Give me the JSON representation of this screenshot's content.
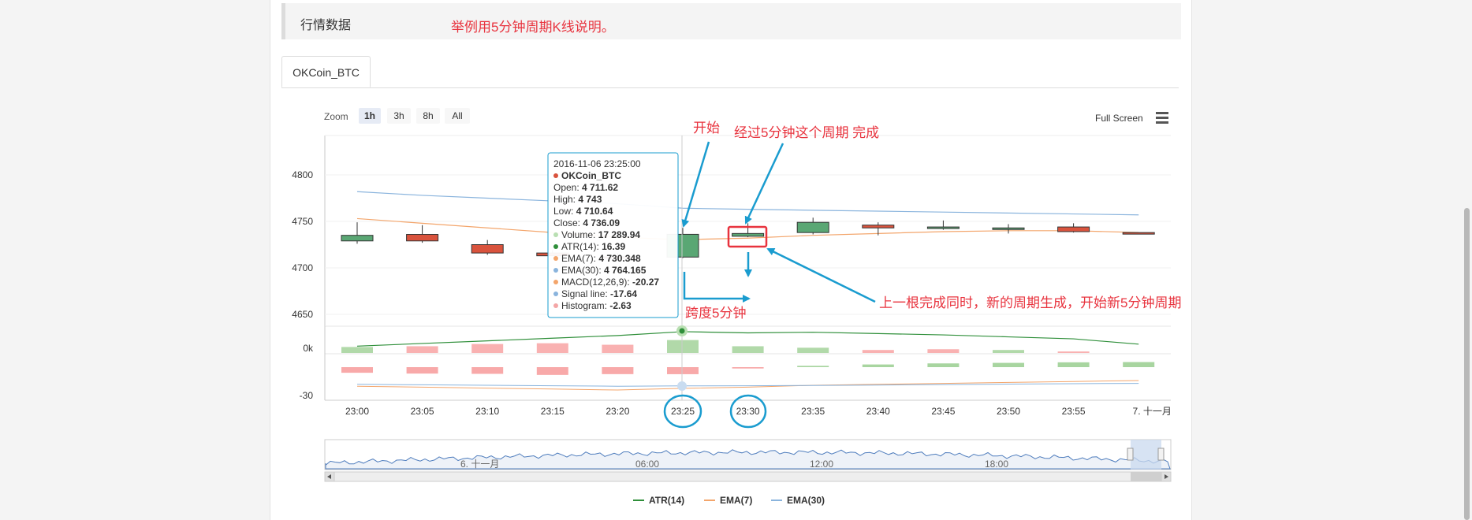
{
  "section": {
    "title": "行情数据",
    "note": "举例用5分钟周期K线说明。"
  },
  "tab": {
    "label": "OKCoin_BTC"
  },
  "toolbar": {
    "zoom_label": "Zoom",
    "zoom_options": [
      "1h",
      "3h",
      "8h",
      "All"
    ],
    "zoom_selected": "1h",
    "full_screen_label": "Full Screen",
    "menu_icon": "hamburger-menu-icon"
  },
  "colors": {
    "up": "#5aa774",
    "down": "#d9533d",
    "atr": "#2f8f3a",
    "ema7": "#f3a56b",
    "ema30": "#8ab4dd",
    "annotation": "#e8333e",
    "arrow": "#1a9ccf"
  },
  "chart_data": {
    "type": "candlestick",
    "series_name": "OKCoin_BTC",
    "x": [
      "23:00",
      "23:05",
      "23:10",
      "23:15",
      "23:20",
      "23:25",
      "23:30",
      "23:35",
      "23:40",
      "23:45",
      "23:50",
      "23:55",
      "7. 十一月"
    ],
    "candles": [
      {
        "t": "23:00",
        "open": 4729,
        "high": 4749,
        "low": 4726,
        "close": 4735
      },
      {
        "t": "23:05",
        "open": 4736,
        "high": 4746,
        "low": 4727,
        "close": 4729
      },
      {
        "t": "23:10",
        "open": 4725,
        "high": 4730,
        "low": 4714,
        "close": 4716
      },
      {
        "t": "23:15",
        "open": 4716,
        "high": 4719,
        "low": 4713,
        "close": 4713
      },
      {
        "t": "23:20",
        "open": 4712,
        "high": 4716,
        "low": 4708,
        "close": 4711
      },
      {
        "t": "23:25",
        "open": 4711.62,
        "high": 4743,
        "low": 4710.64,
        "close": 4736.09
      },
      {
        "t": "23:30",
        "open": 4734,
        "high": 4748,
        "low": 4733,
        "close": 4737
      },
      {
        "t": "23:35",
        "open": 4738,
        "high": 4754,
        "low": 4736,
        "close": 4749
      },
      {
        "t": "23:40",
        "open": 4746,
        "high": 4749,
        "low": 4735,
        "close": 4743
      },
      {
        "t": "23:45",
        "open": 4743,
        "high": 4751,
        "low": 4741,
        "close": 4744
      },
      {
        "t": "23:50",
        "open": 4743,
        "high": 4747,
        "low": 4737,
        "close": 4743
      },
      {
        "t": "23:55",
        "open": 4744,
        "high": 4748,
        "low": 4738,
        "close": 4739
      },
      {
        "t": "7. 十一月",
        "open": 4738,
        "high": 4738,
        "low": 4737,
        "close": 4737
      }
    ],
    "ema7": [
      4753,
      4748,
      4743,
      4738,
      4733,
      4730.348,
      4732,
      4735,
      4737,
      4739,
      4740,
      4740,
      4738
    ],
    "ema30": [
      4782,
      4778,
      4775,
      4772,
      4769,
      4764.165,
      4763,
      4762,
      4761,
      4760,
      4759,
      4758,
      4757
    ],
    "yaxis_ticks": [
      4800,
      4750,
      4700,
      4650
    ],
    "ylim": [
      4650,
      4810
    ],
    "volume": [
      8,
      9,
      12,
      13,
      11,
      17.28994,
      9,
      7,
      4,
      5,
      4,
      2,
      0
    ],
    "volume_up": [
      true,
      false,
      false,
      false,
      false,
      true,
      true,
      true,
      false,
      false,
      true,
      false,
      false
    ],
    "atr": [
      14.2,
      14.6,
      15.0,
      15.4,
      15.8,
      16.39,
      16.2,
      16.3,
      16.1,
      15.9,
      15.6,
      15.3,
      14.5
    ],
    "volume_tick": "0k",
    "macd_hist": [
      -2.1,
      -2.4,
      -2.5,
      -2.9,
      -2.6,
      -2.63,
      -0.5,
      0.5,
      1.0,
      1.4,
      1.6,
      1.8,
      1.9
    ],
    "macd": [
      -18,
      -19,
      -20,
      -21,
      -22,
      -20.27,
      -19,
      -17,
      -16,
      -15,
      -14,
      -13,
      -12
    ],
    "signal": [
      -16,
      -16.5,
      -17,
      -17.5,
      -18,
      -17.64,
      -17.5,
      -17.2,
      -16.8,
      -16.3,
      -15.8,
      -15.3,
      -15
    ],
    "macd_tick": "-30",
    "legend": [
      "ATR(14)",
      "EMA(7)",
      "EMA(30)"
    ],
    "navigator_labels": [
      "6. 十一月",
      "06:00",
      "12:00",
      "18:00"
    ],
    "tooltip": {
      "date": "2016-11-06 23:25:00",
      "rows": [
        {
          "label": "OKCoin_BTC",
          "value": "",
          "color": "#d9533d",
          "bold": true
        },
        {
          "label": "Open: ",
          "value": "4 711.62"
        },
        {
          "label": "High: ",
          "value": "4 743"
        },
        {
          "label": "Low: ",
          "value": "4 710.64"
        },
        {
          "label": "Close: ",
          "value": "4 736.09"
        },
        {
          "label": "Volume: ",
          "value": "17 289.94",
          "color": "#b9dfb2"
        },
        {
          "label": "ATR(14): ",
          "value": "16.39",
          "color": "#2f8f3a"
        },
        {
          "label": "EMA(7): ",
          "value": "4 730.348",
          "color": "#f3a56b"
        },
        {
          "label": "EMA(30): ",
          "value": "4 764.165",
          "color": "#8ab4dd"
        },
        {
          "label": "MACD(12,26,9): ",
          "value": "-20.27",
          "color": "#f3a56b"
        },
        {
          "label": "Signal line: ",
          "value": "-17.64",
          "color": "#8ab4dd"
        },
        {
          "label": "Histogram: ",
          "value": "-2.63",
          "color": "#f4a6a6"
        }
      ]
    }
  },
  "annotations": {
    "start": "开始",
    "complete": "经过5分钟这个周期 完成",
    "span": "跨度5分钟",
    "new_period": "上一根完成同时，新的周期生成，开始新5分钟周期"
  }
}
